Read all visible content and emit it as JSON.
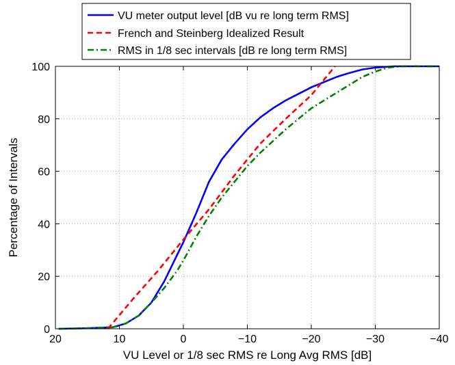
{
  "chart_data": {
    "type": "line",
    "xlabel": "VU Level or 1/8 sec RMS re Long Avg RMS [dB]",
    "ylabel": "Percentage of Intervals",
    "xlim": [
      20,
      -40
    ],
    "ylim": [
      0,
      100
    ],
    "x_reversed": true,
    "xticks": [
      20,
      10,
      0,
      -10,
      -20,
      -30,
      -40
    ],
    "xtick_labels": [
      "20",
      "10",
      "0",
      "−10",
      "−20",
      "−30",
      "−40"
    ],
    "yticks": [
      0,
      20,
      40,
      60,
      80,
      100
    ],
    "ytick_labels": [
      "0",
      "20",
      "40",
      "60",
      "80",
      "100"
    ],
    "grid": true,
    "legend_position": "top-outside",
    "series": [
      {
        "name": "VU meter output level [dB vu re long term RMS]",
        "color": "#0000ff",
        "style": "solid",
        "points": [
          [
            19.5,
            0
          ],
          [
            15,
            0.2
          ],
          [
            11,
            0.6
          ],
          [
            9,
            2
          ],
          [
            7,
            5
          ],
          [
            5,
            10
          ],
          [
            3,
            18
          ],
          [
            1,
            28
          ],
          [
            0,
            33
          ],
          [
            -2,
            44
          ],
          [
            -4,
            56
          ],
          [
            -6,
            64.5
          ],
          [
            -8,
            70.5
          ],
          [
            -10,
            76
          ],
          [
            -12,
            80.5
          ],
          [
            -14,
            84
          ],
          [
            -16,
            87
          ],
          [
            -18,
            89.5
          ],
          [
            -20,
            92
          ],
          [
            -22,
            94
          ],
          [
            -24,
            96
          ],
          [
            -26,
            97.5
          ],
          [
            -28,
            98.8
          ],
          [
            -30,
            99.5
          ],
          [
            -33,
            100
          ],
          [
            -40,
            100
          ]
        ]
      },
      {
        "name": "French and Steinberg Idealized Result",
        "color": "#ff0000",
        "style": "dashed",
        "points": [
          [
            11.8,
            0
          ],
          [
            8,
            11
          ],
          [
            4,
            22
          ],
          [
            0,
            34
          ],
          [
            -4,
            45.5
          ],
          [
            -8,
            58.5
          ],
          [
            -12,
            70.5
          ],
          [
            -16,
            80
          ],
          [
            -20,
            89
          ],
          [
            -23.7,
            100
          ]
        ]
      },
      {
        "name": "RMS in 1/8 sec intervals [dB re long term RMS]",
        "color": "#008000",
        "style": "dashdot",
        "points": [
          [
            19.5,
            0
          ],
          [
            15,
            0.2
          ],
          [
            11,
            0.6
          ],
          [
            9,
            2
          ],
          [
            7,
            5
          ],
          [
            5,
            10
          ],
          [
            3,
            15.5
          ],
          [
            1,
            22
          ],
          [
            0,
            26
          ],
          [
            -2,
            35
          ],
          [
            -4,
            43
          ],
          [
            -6,
            50
          ],
          [
            -8,
            56
          ],
          [
            -10,
            62
          ],
          [
            -12,
            67
          ],
          [
            -14,
            71.5
          ],
          [
            -16,
            76
          ],
          [
            -18,
            80
          ],
          [
            -20,
            84
          ],
          [
            -22,
            87
          ],
          [
            -24,
            90
          ],
          [
            -26,
            93
          ],
          [
            -28,
            96
          ],
          [
            -30,
            98
          ],
          [
            -32,
            99.5
          ],
          [
            -34,
            100
          ],
          [
            -40,
            100
          ]
        ]
      }
    ]
  }
}
